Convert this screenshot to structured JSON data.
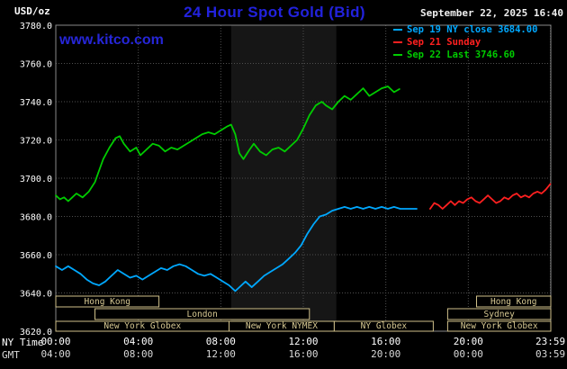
{
  "header": {
    "units_label": "USD/oz",
    "title": "24 Hour Spot Gold (Bid)",
    "datetime": "September 22, 2025 16:40",
    "watermark": "www.kitco.com",
    "legend": [
      {
        "label": "Sep 19 NY close 3684.00",
        "color": "#00a8ff"
      },
      {
        "label": "Sep 21 Sunday",
        "color": "#ff2020"
      },
      {
        "label": "Sep 22 Last 3746.60",
        "color": "#00cc00"
      }
    ]
  },
  "axes": {
    "ny_time_label": "NY Time",
    "gmt_label": "GMT",
    "ny_ticks": [
      "00:00",
      "04:00",
      "08:00",
      "12:00",
      "16:00",
      "20:00",
      "23:59"
    ],
    "gmt_ticks": [
      "04:00",
      "08:00",
      "12:00",
      "16:00",
      "20:00",
      "00:00",
      "03:59"
    ],
    "y_ticks": [
      "3780.0",
      "3760.0",
      "3740.0",
      "3720.0",
      "3700.0",
      "3680.0",
      "3660.0",
      "3640.0",
      "3620.0"
    ]
  },
  "chart_data": {
    "type": "line",
    "title": "24 Hour Spot Gold (Bid)",
    "xlabel": "NY Time",
    "ylabel": "USD/oz",
    "xlim_hours": [
      0,
      24
    ],
    "ylim": [
      3620,
      3780
    ],
    "x_tick_hours": [
      0,
      4,
      8,
      12,
      16,
      20,
      23.983
    ],
    "grid": true,
    "legend_position": "top-right",
    "highlight_band_hours": [
      8.5,
      13.6
    ],
    "series": [
      {
        "name": "Sep 19 NY close 3684.00",
        "color": "#00a8ff",
        "points": [
          [
            0,
            3654
          ],
          [
            0.3,
            3652
          ],
          [
            0.6,
            3654
          ],
          [
            0.9,
            3652
          ],
          [
            1.2,
            3650
          ],
          [
            1.5,
            3647
          ],
          [
            1.8,
            3645
          ],
          [
            2.1,
            3644
          ],
          [
            2.4,
            3646
          ],
          [
            2.7,
            3649
          ],
          [
            3.0,
            3652
          ],
          [
            3.3,
            3650
          ],
          [
            3.6,
            3648
          ],
          [
            3.9,
            3649
          ],
          [
            4.2,
            3647
          ],
          [
            4.5,
            3649
          ],
          [
            4.8,
            3651
          ],
          [
            5.1,
            3653
          ],
          [
            5.4,
            3652
          ],
          [
            5.7,
            3654
          ],
          [
            6.0,
            3655
          ],
          [
            6.3,
            3654
          ],
          [
            6.6,
            3652
          ],
          [
            6.9,
            3650
          ],
          [
            7.2,
            3649
          ],
          [
            7.5,
            3650
          ],
          [
            7.8,
            3648
          ],
          [
            8.1,
            3646
          ],
          [
            8.4,
            3644
          ],
          [
            8.7,
            3641
          ],
          [
            9.0,
            3644
          ],
          [
            9.2,
            3646
          ],
          [
            9.5,
            3643
          ],
          [
            9.8,
            3646
          ],
          [
            10.1,
            3649
          ],
          [
            10.4,
            3651
          ],
          [
            10.7,
            3653
          ],
          [
            11.0,
            3655
          ],
          [
            11.3,
            3658
          ],
          [
            11.6,
            3661
          ],
          [
            11.9,
            3665
          ],
          [
            12.2,
            3671
          ],
          [
            12.5,
            3676
          ],
          [
            12.8,
            3680
          ],
          [
            13.1,
            3681
          ],
          [
            13.4,
            3683
          ],
          [
            13.7,
            3684
          ],
          [
            14.0,
            3685
          ],
          [
            14.3,
            3684
          ],
          [
            14.6,
            3685
          ],
          [
            14.9,
            3684
          ],
          [
            15.2,
            3685
          ],
          [
            15.5,
            3684
          ],
          [
            15.8,
            3685
          ],
          [
            16.1,
            3684
          ],
          [
            16.4,
            3685
          ],
          [
            16.7,
            3684
          ],
          [
            17.0,
            3684
          ],
          [
            17.3,
            3684
          ],
          [
            17.5,
            3684
          ]
        ]
      },
      {
        "name": "Sep 21 Sunday",
        "color": "#ff2020",
        "points": [
          [
            18.15,
            3684
          ],
          [
            18.35,
            3687
          ],
          [
            18.55,
            3686
          ],
          [
            18.75,
            3684
          ],
          [
            18.95,
            3686
          ],
          [
            19.15,
            3688
          ],
          [
            19.35,
            3686
          ],
          [
            19.55,
            3688
          ],
          [
            19.75,
            3687
          ],
          [
            19.95,
            3689
          ],
          [
            20.15,
            3690
          ],
          [
            20.35,
            3688
          ],
          [
            20.55,
            3687
          ],
          [
            20.75,
            3689
          ],
          [
            20.95,
            3691
          ],
          [
            21.15,
            3689
          ],
          [
            21.35,
            3687
          ],
          [
            21.55,
            3688
          ],
          [
            21.75,
            3690
          ],
          [
            21.95,
            3689
          ],
          [
            22.15,
            3691
          ],
          [
            22.35,
            3692
          ],
          [
            22.55,
            3690
          ],
          [
            22.75,
            3691
          ],
          [
            22.95,
            3690
          ],
          [
            23.15,
            3692
          ],
          [
            23.35,
            3693
          ],
          [
            23.55,
            3692
          ],
          [
            23.75,
            3694
          ],
          [
            23.98,
            3697
          ]
        ]
      },
      {
        "name": "Sep 22 Last 3746.60",
        "color": "#00cc00",
        "points": [
          [
            0,
            3691
          ],
          [
            0.2,
            3689
          ],
          [
            0.4,
            3690
          ],
          [
            0.6,
            3688
          ],
          [
            0.8,
            3690
          ],
          [
            1.0,
            3692
          ],
          [
            1.3,
            3690
          ],
          [
            1.6,
            3693
          ],
          [
            1.9,
            3698
          ],
          [
            2.1,
            3704
          ],
          [
            2.3,
            3710
          ],
          [
            2.6,
            3716
          ],
          [
            2.9,
            3721
          ],
          [
            3.1,
            3722
          ],
          [
            3.3,
            3718
          ],
          [
            3.6,
            3714
          ],
          [
            3.9,
            3716
          ],
          [
            4.1,
            3712
          ],
          [
            4.4,
            3715
          ],
          [
            4.7,
            3718
          ],
          [
            5.0,
            3717
          ],
          [
            5.3,
            3714
          ],
          [
            5.6,
            3716
          ],
          [
            5.9,
            3715
          ],
          [
            6.2,
            3717
          ],
          [
            6.5,
            3719
          ],
          [
            6.8,
            3721
          ],
          [
            7.1,
            3723
          ],
          [
            7.4,
            3724
          ],
          [
            7.7,
            3723
          ],
          [
            8.0,
            3725
          ],
          [
            8.3,
            3727
          ],
          [
            8.5,
            3728
          ],
          [
            8.7,
            3723
          ],
          [
            8.9,
            3713
          ],
          [
            9.1,
            3710
          ],
          [
            9.4,
            3715
          ],
          [
            9.6,
            3718
          ],
          [
            9.9,
            3714
          ],
          [
            10.2,
            3712
          ],
          [
            10.5,
            3715
          ],
          [
            10.8,
            3716
          ],
          [
            11.1,
            3714
          ],
          [
            11.4,
            3717
          ],
          [
            11.7,
            3720
          ],
          [
            12.0,
            3726
          ],
          [
            12.3,
            3733
          ],
          [
            12.6,
            3738
          ],
          [
            12.9,
            3740
          ],
          [
            13.1,
            3738
          ],
          [
            13.4,
            3736
          ],
          [
            13.7,
            3740
          ],
          [
            14.0,
            3743
          ],
          [
            14.3,
            3741
          ],
          [
            14.6,
            3744
          ],
          [
            14.9,
            3747
          ],
          [
            15.2,
            3743
          ],
          [
            15.5,
            3745
          ],
          [
            15.8,
            3747
          ],
          [
            16.1,
            3748
          ],
          [
            16.4,
            3745
          ],
          [
            16.66,
            3746.6
          ]
        ]
      }
    ],
    "sessions": [
      {
        "row": 0,
        "label": "Hong Kong",
        "start": 0,
        "end": 5
      },
      {
        "row": 0,
        "label": "Hong Kong",
        "start": 20.4,
        "end": 24
      },
      {
        "row": 1,
        "label": "London",
        "start": 1.9,
        "end": 12.3
      },
      {
        "row": 1,
        "label": "Sydney",
        "start": 19,
        "end": 24
      },
      {
        "row": 2,
        "label": "New York Globex",
        "start": 0,
        "end": 8.4
      },
      {
        "row": 2,
        "label": "New York NYMEX",
        "start": 8.4,
        "end": 13.5
      },
      {
        "row": 2,
        "label": "NY Globex",
        "start": 13.5,
        "end": 18.3
      },
      {
        "row": 2,
        "label": "New York Globex",
        "start": 19,
        "end": 24
      }
    ],
    "colors": {
      "background": "#000000",
      "grid": "#4f4f4f",
      "border": "#888888",
      "session_box": "#cfc08a",
      "title_blue": "#2222dd"
    }
  }
}
